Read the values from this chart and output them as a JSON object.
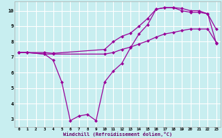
{
  "xlabel": "Windchill (Refroidissement éolien,°C)",
  "bg_color": "#c8eef0",
  "grid_color": "#ffffff",
  "line_color": "#990099",
  "line1_x": [
    0,
    1,
    3,
    4,
    10,
    11,
    12,
    13,
    14,
    15,
    16,
    17,
    18,
    19,
    20,
    21,
    22,
    23
  ],
  "line1_y": [
    7.3,
    7.3,
    7.3,
    7.25,
    7.5,
    8.0,
    8.35,
    8.55,
    9.0,
    9.5,
    10.1,
    10.2,
    10.2,
    10.15,
    10.0,
    10.0,
    9.8,
    8.8
  ],
  "line2_x": [
    0,
    1,
    3,
    4,
    10,
    11,
    12,
    13,
    14,
    15,
    16,
    17,
    18,
    19,
    20,
    21,
    22,
    23
  ],
  "line2_y": [
    7.3,
    7.3,
    7.2,
    7.2,
    7.2,
    7.3,
    7.5,
    7.65,
    7.85,
    8.05,
    8.3,
    8.5,
    8.6,
    8.72,
    8.82,
    8.82,
    8.82,
    7.95
  ],
  "line3_x": [
    0,
    1,
    3,
    4,
    5,
    6,
    7,
    8,
    9,
    10,
    11,
    12,
    13,
    14,
    15,
    16,
    17,
    18,
    19,
    20,
    21,
    22,
    23
  ],
  "line3_y": [
    7.3,
    7.3,
    7.2,
    6.8,
    5.4,
    2.9,
    3.2,
    3.3,
    2.9,
    5.4,
    6.1,
    6.6,
    7.6,
    8.5,
    9.1,
    10.1,
    10.2,
    10.2,
    10.0,
    9.9,
    9.9,
    9.8,
    7.9
  ],
  "xlim": [
    -0.5,
    23.5
  ],
  "ylim": [
    2.5,
    10.6
  ],
  "yticks": [
    3,
    4,
    5,
    6,
    7,
    8,
    9,
    10
  ],
  "xticks": [
    0,
    1,
    2,
    3,
    4,
    5,
    6,
    7,
    8,
    9,
    10,
    11,
    12,
    13,
    14,
    15,
    16,
    17,
    18,
    19,
    20,
    21,
    22,
    23
  ]
}
